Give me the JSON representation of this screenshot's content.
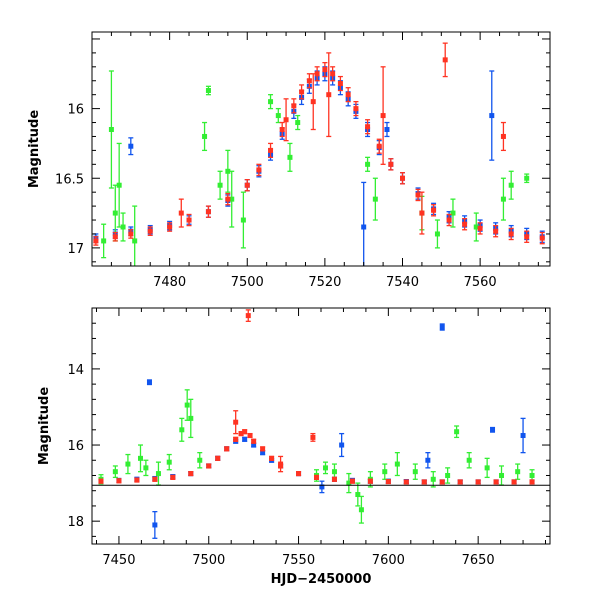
{
  "colors": {
    "green": "#33ee33",
    "blue": "#1155ee",
    "red": "#ff3322",
    "axis": "#000000"
  },
  "chart_data": [
    {
      "type": "scatter",
      "xlabel": "",
      "ylabel": "Magnitude",
      "xlim": [
        7460,
        7578
      ],
      "ylim": [
        17.13,
        15.45
      ],
      "y_inverted": true,
      "grid": false,
      "legend": "none",
      "x_ticks": [
        7480,
        7500,
        7520,
        7540,
        7560
      ],
      "x_tick_labels": [
        "7480",
        "7500",
        "7520",
        "7540",
        "7560"
      ],
      "y_ticks": [
        16,
        16.5,
        17
      ],
      "y_tick_labels": [
        "16",
        "16.5",
        "17"
      ],
      "series": [
        {
          "color": "#1155ee",
          "x": [
            7461,
            7466,
            7470,
            7475,
            7480,
            7485,
            7490,
            7495,
            7500,
            7503,
            7506,
            7509,
            7512,
            7514,
            7516,
            7518,
            7520,
            7522,
            7524,
            7526,
            7528,
            7531,
            7534,
            7537,
            7540,
            7544,
            7548,
            7552,
            7556,
            7560,
            7564,
            7568,
            7572,
            7576,
            7470,
            7530,
            7563,
            7536
          ],
          "y": [
            16.93,
            16.9,
            16.88,
            16.87,
            16.84,
            16.8,
            16.74,
            16.66,
            16.55,
            16.45,
            16.33,
            16.18,
            16.02,
            15.92,
            15.84,
            15.78,
            15.75,
            15.78,
            15.85,
            15.93,
            16.02,
            16.15,
            16.28,
            16.4,
            16.5,
            16.61,
            16.72,
            16.78,
            16.81,
            16.84,
            16.86,
            16.88,
            16.9,
            16.92,
            16.27,
            16.85,
            16.05,
            16.15
          ],
          "err": [
            0.03,
            0.03,
            0.03,
            0.03,
            0.03,
            0.03,
            0.04,
            0.04,
            0.04,
            0.04,
            0.04,
            0.04,
            0.05,
            0.05,
            0.05,
            0.05,
            0.05,
            0.05,
            0.05,
            0.05,
            0.05,
            0.05,
            0.05,
            0.04,
            0.04,
            0.04,
            0.04,
            0.04,
            0.04,
            0.04,
            0.04,
            0.04,
            0.04,
            0.04,
            0.06,
            0.32,
            0.32,
            0.05
          ]
        },
        {
          "color": "#33ee33",
          "x": [
            7463,
            7465,
            7466,
            7467,
            7468,
            7471,
            7489,
            7490,
            7493,
            7495,
            7496,
            7499,
            7506,
            7508,
            7511,
            7513,
            7531,
            7533,
            7545,
            7549,
            7553,
            7559,
            7566,
            7568,
            7572
          ],
          "y": [
            16.95,
            16.15,
            16.75,
            16.55,
            16.85,
            16.95,
            16.2,
            15.87,
            16.55,
            16.45,
            16.65,
            16.8,
            15.95,
            16.05,
            16.35,
            16.1,
            16.4,
            16.65,
            16.75,
            16.9,
            16.75,
            16.85,
            16.65,
            16.55,
            16.5
          ],
          "err": [
            0.12,
            0.42,
            0.2,
            0.3,
            0.1,
            0.25,
            0.1,
            0.03,
            0.1,
            0.15,
            0.2,
            0.2,
            0.05,
            0.05,
            0.1,
            0.05,
            0.05,
            0.15,
            0.12,
            0.1,
            0.1,
            0.1,
            0.15,
            0.1,
            0.03
          ]
        },
        {
          "color": "#ff3322",
          "x": [
            7461,
            7466,
            7470,
            7475,
            7480,
            7485,
            7490,
            7495,
            7500,
            7503,
            7506,
            7509,
            7512,
            7514,
            7516,
            7518,
            7520,
            7522,
            7524,
            7526,
            7528,
            7531,
            7534,
            7537,
            7540,
            7544,
            7548,
            7552,
            7556,
            7560,
            7564,
            7568,
            7572,
            7576,
            7483,
            7510,
            7517,
            7521,
            7535,
            7545,
            7551,
            7566
          ],
          "y": [
            16.95,
            16.92,
            16.9,
            16.88,
            16.85,
            16.8,
            16.74,
            16.65,
            16.55,
            16.44,
            16.3,
            16.15,
            15.98,
            15.88,
            15.8,
            15.75,
            15.72,
            15.75,
            15.82,
            15.9,
            16.0,
            16.13,
            16.27,
            16.4,
            16.5,
            16.62,
            16.73,
            16.8,
            16.83,
            16.86,
            16.88,
            16.9,
            16.92,
            16.93,
            16.75,
            16.08,
            15.95,
            15.9,
            16.05,
            16.75,
            15.65,
            16.2
          ],
          "err": [
            0.03,
            0.03,
            0.03,
            0.03,
            0.03,
            0.04,
            0.04,
            0.04,
            0.04,
            0.04,
            0.05,
            0.05,
            0.05,
            0.05,
            0.05,
            0.05,
            0.05,
            0.05,
            0.05,
            0.05,
            0.05,
            0.05,
            0.05,
            0.04,
            0.04,
            0.04,
            0.04,
            0.04,
            0.04,
            0.04,
            0.04,
            0.04,
            0.04,
            0.04,
            0.1,
            0.15,
            0.2,
            0.3,
            0.35,
            0.15,
            0.12,
            0.1
          ]
        }
      ]
    },
    {
      "type": "scatter",
      "xlabel": "HJD−2450000",
      "ylabel": "Magnitude",
      "xlim": [
        7435,
        7690
      ],
      "ylim": [
        18.6,
        12.4
      ],
      "y_inverted": true,
      "grid": false,
      "legend": "none",
      "x_ticks": [
        7450,
        7500,
        7550,
        7600,
        7650
      ],
      "x_tick_labels": [
        "7450",
        "7500",
        "7550",
        "7600",
        "7650"
      ],
      "y_ticks": [
        14,
        16,
        18
      ],
      "y_tick_labels": [
        "14",
        "16",
        "18"
      ],
      "series": [
        {
          "color": "#1155ee",
          "x": [
            7440,
            7450,
            7460,
            7470,
            7480,
            7490,
            7500,
            7505,
            7510,
            7515,
            7520,
            7525,
            7530,
            7535,
            7540,
            7550,
            7560,
            7570,
            7580,
            7590,
            7600,
            7610,
            7620,
            7630,
            7640,
            7650,
            7660,
            7670,
            7680,
            7467,
            7470,
            7630,
            7658,
            7675,
            7563,
            7574,
            7622
          ],
          "y": [
            16.95,
            16.93,
            16.9,
            16.88,
            16.83,
            16.75,
            16.55,
            16.35,
            16.1,
            15.9,
            15.85,
            16.0,
            16.2,
            16.4,
            16.55,
            16.75,
            16.85,
            16.9,
            16.93,
            16.95,
            16.95,
            16.96,
            16.97,
            16.97,
            16.97,
            16.97,
            16.97,
            16.97,
            16.97,
            14.35,
            18.1,
            12.9,
            15.6,
            15.75,
            17.1,
            16.0,
            16.4
          ],
          "err": [
            0.05,
            0.05,
            0.05,
            0.05,
            0.05,
            0.05,
            0.05,
            0.05,
            0.05,
            0.05,
            0.05,
            0.05,
            0.05,
            0.05,
            0.05,
            0.05,
            0.05,
            0.05,
            0.05,
            0.05,
            0.05,
            0.05,
            0.05,
            0.05,
            0.05,
            0.05,
            0.05,
            0.05,
            0.05,
            0.06,
            0.35,
            0.08,
            0.06,
            0.45,
            0.15,
            0.3,
            0.2
          ]
        },
        {
          "color": "#33ee33",
          "x": [
            7440,
            7448,
            7455,
            7462,
            7465,
            7472,
            7478,
            7485,
            7488,
            7490,
            7495,
            7560,
            7565,
            7570,
            7578,
            7583,
            7585,
            7590,
            7598,
            7605,
            7615,
            7625,
            7633,
            7638,
            7645,
            7655,
            7663,
            7672,
            7680
          ],
          "y": [
            16.9,
            16.7,
            16.5,
            16.35,
            16.6,
            16.75,
            16.45,
            15.6,
            14.95,
            15.3,
            16.4,
            16.8,
            16.6,
            16.7,
            17.0,
            17.3,
            17.7,
            16.9,
            16.7,
            16.5,
            16.7,
            16.9,
            16.8,
            15.65,
            16.4,
            16.6,
            16.8,
            16.7,
            16.8
          ],
          "err": [
            0.12,
            0.15,
            0.25,
            0.35,
            0.2,
            0.3,
            0.2,
            0.3,
            0.4,
            0.5,
            0.2,
            0.15,
            0.15,
            0.2,
            0.25,
            0.3,
            0.35,
            0.2,
            0.2,
            0.3,
            0.2,
            0.2,
            0.2,
            0.15,
            0.2,
            0.25,
            0.25,
            0.2,
            0.15
          ]
        },
        {
          "color": "#ff3322",
          "x": [
            7440,
            7450,
            7460,
            7470,
            7480,
            7490,
            7500,
            7505,
            7510,
            7515,
            7518,
            7520,
            7523,
            7525,
            7530,
            7535,
            7540,
            7550,
            7560,
            7570,
            7580,
            7590,
            7600,
            7610,
            7620,
            7630,
            7640,
            7650,
            7660,
            7670,
            7680,
            7522,
            7558,
            7515,
            7540
          ],
          "y": [
            16.95,
            16.94,
            16.92,
            16.9,
            16.85,
            16.75,
            16.55,
            16.35,
            16.1,
            15.85,
            15.7,
            15.65,
            15.75,
            15.9,
            16.1,
            16.35,
            16.55,
            16.75,
            16.85,
            16.9,
            16.95,
            16.95,
            16.96,
            16.97,
            16.97,
            16.97,
            16.97,
            16.97,
            16.97,
            16.97,
            16.97,
            12.6,
            15.8,
            15.4,
            16.5
          ],
          "err": [
            0.05,
            0.05,
            0.05,
            0.05,
            0.05,
            0.05,
            0.05,
            0.05,
            0.05,
            0.05,
            0.05,
            0.05,
            0.05,
            0.05,
            0.05,
            0.05,
            0.05,
            0.05,
            0.05,
            0.05,
            0.05,
            0.05,
            0.05,
            0.05,
            0.05,
            0.05,
            0.05,
            0.05,
            0.05,
            0.05,
            0.05,
            0.15,
            0.1,
            0.3,
            0.2
          ]
        }
      ]
    }
  ]
}
